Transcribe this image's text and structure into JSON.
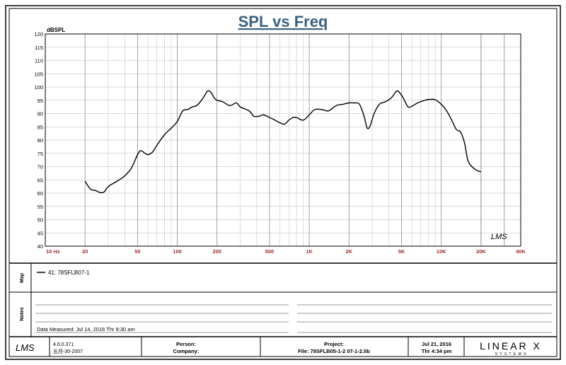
{
  "chart_data": {
    "type": "line",
    "title": "SPL vs Freq",
    "ylabel": "dBSPL",
    "xscale": "log",
    "xlim": [
      10,
      40000
    ],
    "ylim": [
      40,
      120
    ],
    "grid": true,
    "y_ticks": [
      40,
      45,
      50,
      55,
      60,
      65,
      70,
      75,
      80,
      85,
      90,
      95,
      100,
      105,
      110,
      115,
      120
    ],
    "x_tick_values": [
      10,
      20,
      50,
      100,
      200,
      500,
      1000,
      2000,
      5000,
      10000,
      20000,
      40000
    ],
    "x_tick_labels": [
      "10  Hz",
      "20",
      "50",
      "100",
      "200",
      "500",
      "1K",
      "2K",
      "5K",
      "10K",
      "20K",
      "40K"
    ],
    "series": [
      {
        "name": "41: 78SFLB07-1",
        "color": "#000000",
        "points": [
          [
            20,
            64.5
          ],
          [
            22,
            61.5
          ],
          [
            24,
            61
          ],
          [
            26,
            60.2
          ],
          [
            28,
            60.5
          ],
          [
            30,
            62.5
          ],
          [
            35,
            64.5
          ],
          [
            40,
            66.5
          ],
          [
            45,
            69.5
          ],
          [
            50,
            74.5
          ],
          [
            53,
            76
          ],
          [
            57,
            75
          ],
          [
            60,
            74.5
          ],
          [
            65,
            75.5
          ],
          [
            70,
            78
          ],
          [
            80,
            82
          ],
          [
            90,
            84.5
          ],
          [
            100,
            87
          ],
          [
            110,
            91
          ],
          [
            120,
            91.5
          ],
          [
            130,
            92.5
          ],
          [
            140,
            93
          ],
          [
            150,
            94.5
          ],
          [
            160,
            96.5
          ],
          [
            170,
            98.5
          ],
          [
            180,
            98
          ],
          [
            190,
            96
          ],
          [
            200,
            95
          ],
          [
            220,
            94.5
          ],
          [
            250,
            93
          ],
          [
            280,
            94
          ],
          [
            300,
            92.5
          ],
          [
            350,
            91
          ],
          [
            380,
            89
          ],
          [
            420,
            89
          ],
          [
            450,
            89.5
          ],
          [
            500,
            88.5
          ],
          [
            550,
            87.5
          ],
          [
            600,
            86.5
          ],
          [
            650,
            86
          ],
          [
            700,
            87.5
          ],
          [
            750,
            88.5
          ],
          [
            800,
            88.5
          ],
          [
            900,
            87.5
          ],
          [
            1000,
            89.5
          ],
          [
            1100,
            91.5
          ],
          [
            1250,
            91.5
          ],
          [
            1400,
            91
          ],
          [
            1600,
            93
          ],
          [
            1800,
            93.5
          ],
          [
            2000,
            94
          ],
          [
            2200,
            94
          ],
          [
            2400,
            93.5
          ],
          [
            2600,
            89
          ],
          [
            2750,
            84.5
          ],
          [
            2900,
            85.5
          ],
          [
            3100,
            90
          ],
          [
            3400,
            93.5
          ],
          [
            3800,
            94.5
          ],
          [
            4200,
            96
          ],
          [
            4600,
            98.5
          ],
          [
            4900,
            97.5
          ],
          [
            5200,
            95.5
          ],
          [
            5600,
            92.5
          ],
          [
            6000,
            92.8
          ],
          [
            6500,
            93.8
          ],
          [
            7000,
            94.5
          ],
          [
            7500,
            95
          ],
          [
            8000,
            95.3
          ],
          [
            9000,
            95.2
          ],
          [
            10000,
            93.5
          ],
          [
            11000,
            91
          ],
          [
            12000,
            87.5
          ],
          [
            13000,
            84
          ],
          [
            14000,
            83
          ],
          [
            15000,
            79
          ],
          [
            16000,
            72
          ],
          [
            18000,
            69
          ],
          [
            20000,
            68
          ]
        ]
      }
    ]
  },
  "map": {
    "tab": "Map",
    "entries": [
      "41: 78SFLB07-1"
    ]
  },
  "notes": {
    "tab": "Notes",
    "measured": "Data Measured: Jul 14, 2016  Thr  8:30 am"
  },
  "logo": {
    "lms": "LMS",
    "company": "LINEAR X",
    "tagline": "S Y S T E M S"
  },
  "footer": {
    "version": "4.6.0.371",
    "build_date": "五月-30-2007",
    "person_label": "Person:",
    "company_label": "Company:",
    "project_label": "Project:",
    "file_label": "File: 78SFLB05-1-2 07-1-2.lib",
    "date": "Jul 21, 2016",
    "time": "Thr   4:34 pm"
  }
}
